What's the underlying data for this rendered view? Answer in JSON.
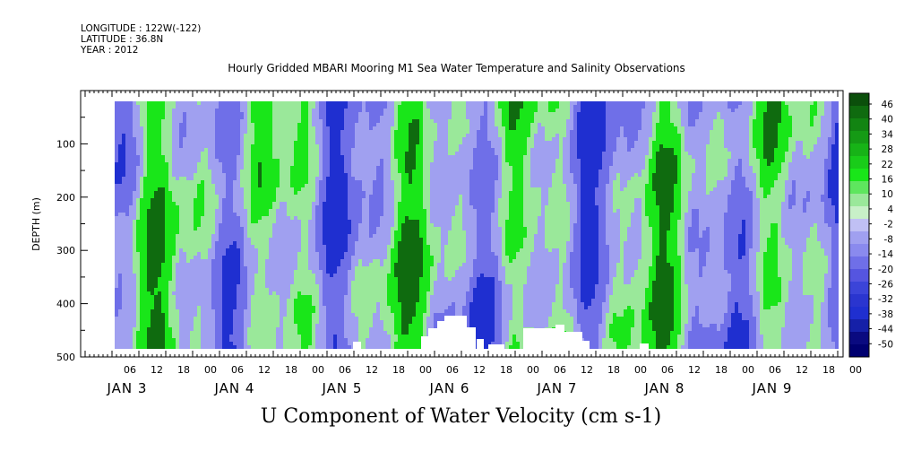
{
  "header": {
    "longitude": "LONGITUDE : 122W(-122)",
    "latitude": "LATITUDE : 36.8N",
    "year": "YEAR : 2012",
    "title": "Hourly Gridded MBARI Mooring M1 Sea Water Temperature and Salinity Observations"
  },
  "chart_data": {
    "type": "heatmap",
    "title": "Hourly Gridded MBARI Mooring M1 Sea Water Temperature and Salinity Observations",
    "bottom_title": "U Component of Water Velocity (cm s-1)",
    "ylabel": "DEPTH (m)",
    "xlabel": "",
    "ylim": [
      500,
      0
    ],
    "y_ticks": [
      100,
      200,
      300,
      400,
      500
    ],
    "x_hour_ticks": [
      "06",
      "12",
      "18",
      "00",
      "06",
      "12",
      "18",
      "00",
      "06",
      "12",
      "18",
      "00",
      "06",
      "12",
      "18",
      "00",
      "06",
      "12",
      "18",
      "00",
      "06",
      "12",
      "18",
      "00",
      "06",
      "12",
      "18",
      "00"
    ],
    "x_day_labels": [
      "JAN 3",
      "JAN 4",
      "JAN 5",
      "JAN 6",
      "JAN 7",
      "JAN 8",
      "JAN 9"
    ],
    "colorbar_labels": [
      "46",
      "40",
      "34",
      "28",
      "22",
      "16",
      "10",
      "4",
      "-2",
      "-8",
      "-14",
      "-20",
      "-26",
      "-32",
      "-38",
      "-44",
      "-50"
    ],
    "colorbar_range": [
      -50,
      52
    ],
    "colors": {
      "strong_positive": "#0f6b0f",
      "positive": "#19e619",
      "weak_positive": "#9ae89a",
      "weak_negative": "#a0a0f0",
      "negative": "#6f6fe8",
      "strong_negative": "#1f2fd0",
      "deepest_negative": "#000070"
    },
    "grid": false
  }
}
